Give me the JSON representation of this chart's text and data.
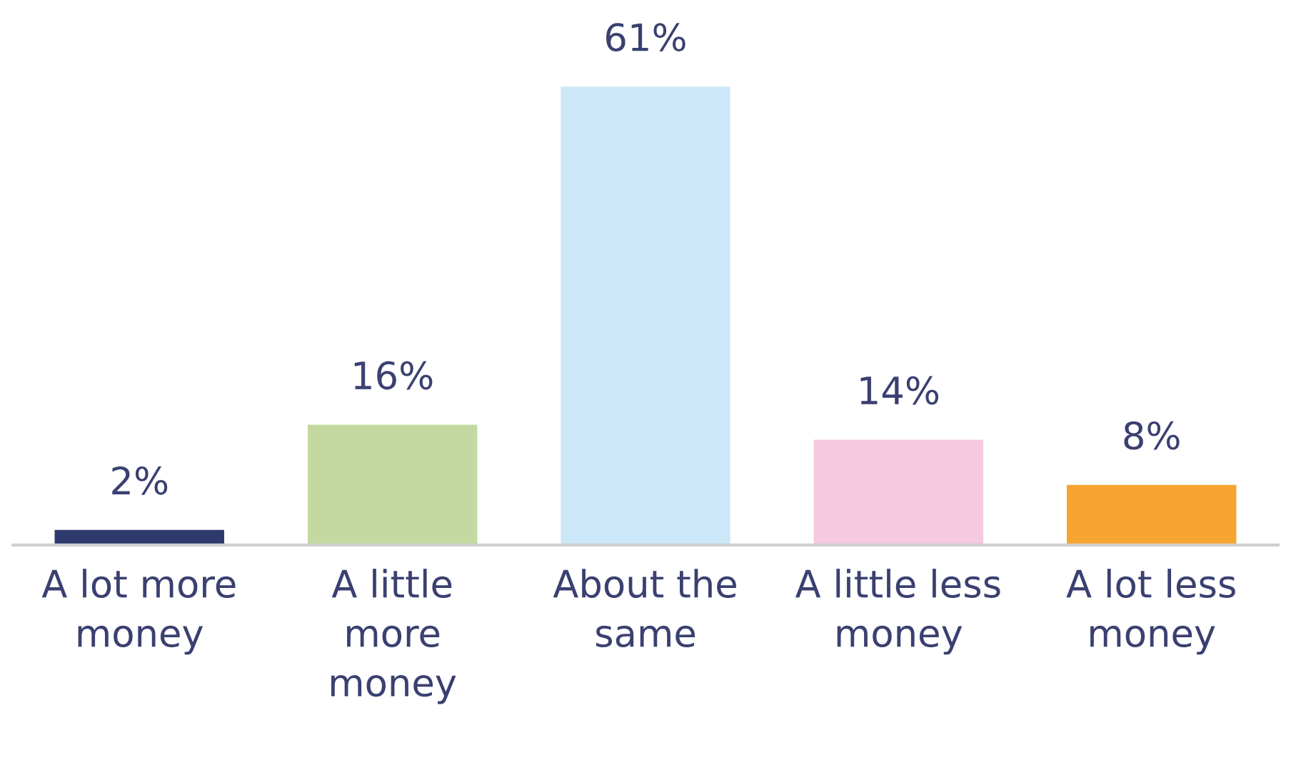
{
  "chart_data": {
    "type": "bar",
    "categories": [
      "A lot more\nmoney",
      "A little\nmore\nmoney",
      "About the\nsame",
      "A little less\nmoney",
      "A lot less\nmoney"
    ],
    "values": [
      2,
      16,
      61,
      14,
      8
    ],
    "colors": [
      "#2e3a6e",
      "#c3d9a1",
      "#cce7f8",
      "#f5c9df",
      "#f7a531"
    ],
    "value_labels": [
      "2%",
      "16%",
      "61%",
      "14%",
      "8%"
    ],
    "grid": false,
    "legend": false
  }
}
